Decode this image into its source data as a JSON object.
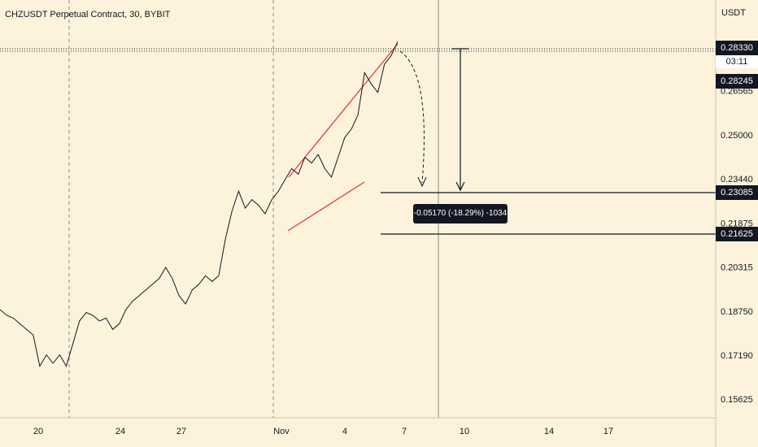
{
  "title": "CHZUSDT Perpetual Contract, 30, BYBIT",
  "unit": "USDT",
  "price_axis_ticks": [
    "0.26565",
    "0.25000",
    "0.23440",
    "0.21875",
    "0.20315",
    "0.18750",
    "0.17190",
    "0.15625"
  ],
  "price_tags": {
    "last_price": "0.28330",
    "countdown": "03:11",
    "second_price": "0.28245",
    "target_1": "0.23085",
    "target_2": "0.21625"
  },
  "measure_label": "-0.05170 (-18.29%) -1034",
  "chart_data": {
    "type": "line",
    "title": "CHZUSDT Perpetual Contract, 30, BYBIT",
    "ylabel": "USDT",
    "ylim": [
      0.152,
      0.292
    ],
    "x_tick_labels": [
      "20",
      "24",
      "27",
      "Nov",
      "4",
      "7",
      "10",
      "14",
      "17"
    ],
    "series": [
      {
        "values": [
          0.188,
          0.186,
          0.185,
          0.183,
          0.181,
          0.179,
          0.168,
          0.172,
          0.169,
          0.172,
          0.168,
          0.176,
          0.184,
          0.187,
          0.186,
          0.184,
          0.185,
          0.181,
          0.183,
          0.188,
          0.191,
          0.193,
          0.195,
          0.197,
          0.199,
          0.203,
          0.199,
          0.193,
          0.19,
          0.195,
          0.197,
          0.2,
          0.198,
          0.2,
          0.213,
          0.223,
          0.23,
          0.224,
          0.227,
          0.225,
          0.222,
          0.227,
          0.23,
          0.234,
          0.238,
          0.236,
          0.242,
          0.24,
          0.243,
          0.238,
          0.235,
          0.242,
          0.249,
          0.252,
          0.257,
          0.272,
          0.268,
          0.265,
          0.275,
          0.278,
          0.283
        ]
      }
    ],
    "annotations": {
      "last_price": 0.2833,
      "target_1": 0.23085,
      "target_2": 0.21625,
      "measure": "-0.05170 (-18.29%) -1034"
    },
    "colors": {
      "price": "#131722",
      "channel": "#e53935",
      "background": "#fdf3dc"
    },
    "grid": false
  }
}
